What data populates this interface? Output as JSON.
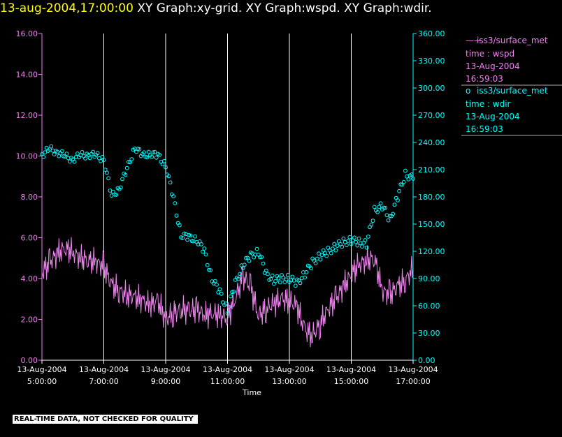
{
  "title": {
    "timestamp": "13-aug-2004,17:00:00",
    "graphs": "XY Graph:xy-grid.  XY Graph:wspd.  XY Graph:wdir."
  },
  "banner": "REAL-TIME DATA, NOT CHECKED FOR QUALITY",
  "colors": {
    "wspd": "#ee82ee",
    "wdir": "#00ffff",
    "grid": "#ffffff",
    "title_time": "#ffff00"
  },
  "chart_data": {
    "type": "line",
    "xlabel": "Time",
    "x_ticks": [
      {
        "hour": 5,
        "date": "13-Aug-2004",
        "time": "5:00:00"
      },
      {
        "hour": 7,
        "date": "13-Aug-2004",
        "time": "7:00:00"
      },
      {
        "hour": 9,
        "date": "13-Aug-2004",
        "time": "9:00:00"
      },
      {
        "hour": 11,
        "date": "13-Aug-2004",
        "time": "11:00:00"
      },
      {
        "hour": 13,
        "date": "13-Aug-2004",
        "time": "13:00:00"
      },
      {
        "hour": 15,
        "date": "13-Aug-2004",
        "time": "15:00:00"
      },
      {
        "hour": 17,
        "date": "13-Aug-2004",
        "time": "17:00:00"
      }
    ],
    "xlim_hours": [
      5,
      17
    ],
    "grid": "vertical",
    "left_axis": {
      "ylim": [
        0,
        16
      ],
      "ticks": [
        "0.00",
        "2.00",
        "4.00",
        "6.00",
        "8.00",
        "10.00",
        "12.00",
        "14.00",
        "16.00"
      ]
    },
    "right_axis": {
      "ylim": [
        0,
        360
      ],
      "ticks": [
        "0.00",
        "30.00",
        "60.00",
        "90.00",
        "120.00",
        "150.00",
        "180.00",
        "210.00",
        "240.00",
        "270.00",
        "300.00",
        "330.00",
        "360.00"
      ]
    },
    "legend": [
      {
        "symbol": "——",
        "name": "iss3/surface_met",
        "var": "time : wspd",
        "date": "13-Aug-2004",
        "time": "16:59:03"
      },
      {
        "symbol": "o",
        "name": "iss3/surface_met",
        "var": "time : wdir",
        "date": "13-Aug-2004",
        "time": "16:59:03"
      }
    ],
    "series": [
      {
        "name": "iss3/surface_met time : wspd",
        "axis": "left",
        "style": "line",
        "x_hours": [
          5.0,
          5.25,
          5.5,
          5.75,
          6.0,
          6.25,
          6.5,
          6.75,
          7.0,
          7.25,
          7.5,
          7.75,
          8.0,
          8.25,
          8.5,
          8.75,
          9.0,
          9.25,
          9.5,
          9.75,
          10.0,
          10.25,
          10.5,
          10.75,
          11.0,
          11.25,
          11.5,
          11.75,
          12.0,
          12.25,
          12.5,
          12.75,
          13.0,
          13.25,
          13.5,
          13.75,
          14.0,
          14.25,
          14.5,
          14.75,
          15.0,
          15.25,
          15.5,
          15.75,
          16.0,
          16.25,
          16.5,
          16.75,
          17.0
        ],
        "values": [
          4.3,
          4.8,
          5.2,
          5.5,
          5.3,
          5.0,
          4.9,
          4.8,
          4.6,
          3.7,
          3.4,
          3.2,
          3.1,
          2.9,
          2.7,
          2.9,
          2.0,
          2.3,
          2.5,
          2.4,
          2.5,
          2.2,
          2.3,
          2.2,
          2.1,
          3.0,
          4.1,
          3.6,
          2.2,
          2.5,
          2.8,
          3.0,
          2.9,
          2.6,
          1.5,
          1.2,
          1.8,
          2.5,
          3.0,
          3.6,
          4.2,
          4.7,
          4.9,
          5.0,
          3.4,
          3.2,
          3.6,
          3.9,
          4.5
        ]
      },
      {
        "name": "iss3/surface_met time : wdir",
        "axis": "right",
        "style": "circle-markers",
        "x_hours": [
          5.0,
          5.25,
          5.5,
          5.75,
          6.0,
          6.25,
          6.5,
          6.75,
          7.0,
          7.25,
          7.5,
          7.75,
          8.0,
          8.25,
          8.5,
          8.75,
          9.0,
          9.25,
          9.5,
          9.75,
          10.0,
          10.25,
          10.5,
          10.75,
          11.0,
          11.25,
          11.5,
          11.75,
          12.0,
          12.25,
          12.5,
          12.75,
          13.0,
          13.25,
          13.5,
          13.75,
          14.0,
          14.25,
          14.5,
          14.75,
          15.0,
          15.25,
          15.5,
          15.75,
          16.0,
          16.25,
          16.5,
          16.75,
          17.0
        ],
        "values": [
          227,
          232,
          230,
          224,
          222,
          225,
          227,
          225,
          222,
          180,
          190,
          210,
          235,
          225,
          228,
          225,
          215,
          178,
          138,
          135,
          133,
          120,
          90,
          75,
          55,
          85,
          105,
          115,
          120,
          95,
          88,
          90,
          90,
          85,
          95,
          108,
          115,
          120,
          125,
          130,
          132,
          130,
          128,
          165,
          170,
          155,
          180,
          205,
          200
        ]
      }
    ]
  }
}
